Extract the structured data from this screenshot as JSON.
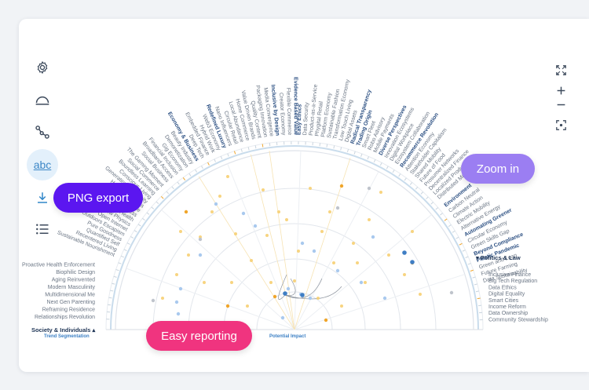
{
  "callouts": {
    "png_export": "PNG export",
    "zoom_in": "Zoom in",
    "easy_reporting": "Easy reporting"
  },
  "toolbar": {
    "settings_icon": "gear-icon",
    "arc_icon": "semicircle-icon",
    "network_icon": "graph-nodes-icon",
    "text_toggle": "abc",
    "download_icon": "download-icon",
    "list_icon": "list-icon"
  },
  "right_toolbar": [
    "expand-icon",
    "plus-icon",
    "minus-icon",
    "focus-icon"
  ],
  "chart": {
    "axis_left": "Trend Segmentation",
    "axis_center": "Potential Impact",
    "groups": {
      "society": "Society & Individuals",
      "economy": "Economy & Business",
      "environment": "Environment",
      "politics": "Politics & Law"
    },
    "society_labels": [
      "Relationships Revolution",
      "Reframing Residence",
      "Next Gen Parenting",
      "Multidimensional Me",
      "Modern Masculinity",
      "Aging Reinvented",
      "Biophilic Design",
      "Proactive Health Enforcement",
      "Sustainable Nourishment",
      "Recentered Living",
      "Quantified Self",
      "Pure Goodness",
      "Outdoors Escapism",
      "Open Internet",
      "New Physics",
      "Natural Health",
      "Mindfulness",
      "Mental Balance",
      "Holistic Wellness",
      "Generational Diversity",
      "Conscious Living",
      "Boundless Learning",
      "Social Commerce",
      "The Gaming Moment"
    ],
    "economy_labels": [
      "Social Business",
      "Broadband Access",
      "Financial Inclusion",
      "Gig Economy",
      "Demonetization",
      "Beauty Industry",
      "Economy & Business",
      "Deep Tech",
      "Embedded Finance",
      "Hybrid Work",
      "Web3 Economy",
      "Redefined Luxury",
      "Nano Influencers",
      "Circular Retail",
      "Local Abundance",
      "Home Commerce",
      "Value Driven Brands",
      "Quality Content",
      "Packaging Innovation",
      "Media Convergence",
      "Inclusive by Design",
      "Creator Economy",
      "Flexible Commerce",
      "Evidence Based Value",
      "Easy Ethics",
      "Data Security",
      "Product-as-a-Service",
      "Phygital Retail",
      "Platform Economy",
      "Sustainable Fashion",
      "Transformation Economy",
      "Low Touch Living",
      "Digital Assets",
      "Radical Transparency",
      "Trading Origin",
      "Smart Fleet",
      "Robo Advisory",
      "Mobile Payments",
      "Diverse Perspectives",
      "Innovation Ecosystems",
      "Digital Workplace",
      "Ecosystem Collaboration",
      "Recommerce Revolution",
      "Attention Economy",
      "Stakeholder Capitalism",
      "Shared Mobility",
      "Future of Food",
      "Prosumer Networks",
      "Decentralized Finance",
      "Localized Production",
      "Distributed Manufacturing"
    ],
    "env_labels": [
      "Environment",
      "Carbon Neutral",
      "Climate Action",
      "Electric Mobility",
      "Alternative Energy",
      "Automating Greener",
      "Circular Economy",
      "Green Skills Gap",
      "Beyond Compliance",
      "Plastic Pandemic",
      "Green and Lean",
      "Future Farming",
      "Data Sustainability"
    ],
    "politics_labels": [
      "Inclusive Finance",
      "Big Tech Regulation",
      "Data Ethics",
      "Digital Equality",
      "Smart Cities",
      "Income Reform",
      "Data Ownership",
      "Community Stewardship"
    ]
  },
  "colors": {
    "png_export": "#5b16f0",
    "zoom_in": "#9b7ef2",
    "easy_reporting": "#f0347f",
    "accent_blue": "#2f6fbf",
    "dot_yellow": "#f6cf72",
    "dot_orange": "#f0a52a",
    "dot_lightblue": "#a9c9ee",
    "dot_gray": "#bfc4cc"
  }
}
